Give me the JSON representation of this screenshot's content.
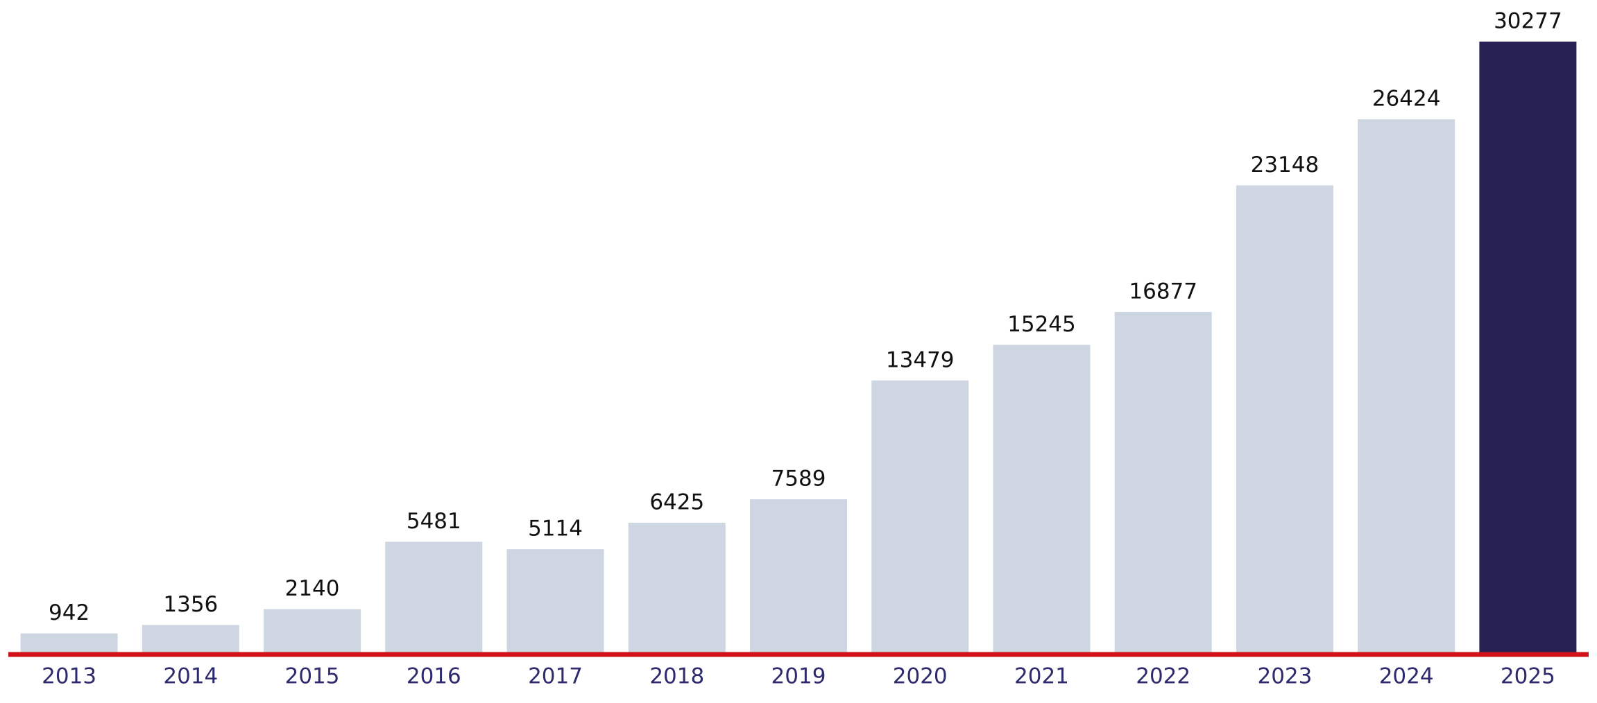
{
  "chart_data": {
    "type": "bar",
    "categories": [
      "2013",
      "2014",
      "2015",
      "2016",
      "2017",
      "2018",
      "2019",
      "2020",
      "2021",
      "2022",
      "2023",
      "2024",
      "2025"
    ],
    "values": [
      942,
      1356,
      2140,
      5481,
      5114,
      6425,
      7589,
      13479,
      15245,
      16877,
      23148,
      26424,
      30277
    ],
    "colors": [
      "#cdd6e1",
      "#cdd6e1",
      "#cdd6e1",
      "#cdd6e1",
      "#cdd6e1",
      "#cdd6e1",
      "#cdd6e1",
      "#cdd6e1",
      "#cdd6e1",
      "#cdd6e1",
      "#cdd6e1",
      "#cdd6e1",
      "#272253"
    ],
    "baseline_color": "#d0121b",
    "category_label_color": "#2d2a6e"
  }
}
